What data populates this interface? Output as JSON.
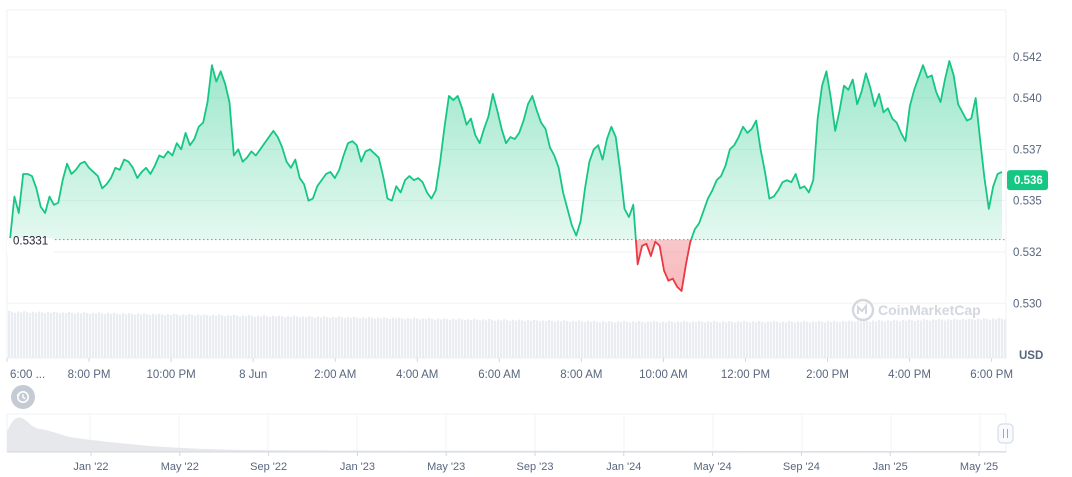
{
  "chart_data": {
    "type": "area",
    "y_ticks": [
      "0.542",
      "0.540",
      "0.537",
      "0.535",
      "0.532",
      "0.530"
    ],
    "y_tick_values": [
      0.542,
      0.54,
      0.5375,
      0.535,
      0.5325,
      0.53
    ],
    "ylim": [
      0.5287,
      0.5438
    ],
    "x_ticks": [
      "6:00 ...",
      "8:00 PM",
      "10:00 PM",
      "8 Jun",
      "2:00 AM",
      "4:00 AM",
      "6:00 AM",
      "8:00 AM",
      "10:00 AM",
      "12:00 PM",
      "2:00 PM",
      "4:00 PM",
      "6:00 PM"
    ],
    "x_tick_hours": [
      0,
      2,
      4,
      6,
      8,
      10,
      12,
      14,
      16,
      18,
      20,
      22,
      24
    ],
    "xlim_hours": [
      0,
      24.35
    ],
    "unit": "USD",
    "reference_value": 0.5331,
    "reference_label": "0.5331",
    "current_value": 0.536,
    "current_label": "0.536",
    "up_color": "#16c784",
    "down_color": "#ea3943",
    "series": [
      {
        "values": [
          0.5331,
          0.5352,
          0.5344,
          0.5363,
          0.5363,
          0.5362,
          0.5356,
          0.5347,
          0.5344,
          0.5352,
          0.5348,
          0.5349,
          0.536,
          0.5368,
          0.5363,
          0.5365,
          0.5368,
          0.5369,
          0.5366,
          0.5364,
          0.5362,
          0.5356,
          0.5358,
          0.5361,
          0.5366,
          0.5365,
          0.537,
          0.5369,
          0.5366,
          0.5361,
          0.5364,
          0.5366,
          0.5363,
          0.5367,
          0.5372,
          0.5371,
          0.5374,
          0.5372,
          0.5378,
          0.5375,
          0.5383,
          0.5377,
          0.538,
          0.5386,
          0.5388,
          0.5398,
          0.5416,
          0.5408,
          0.5413,
          0.5407,
          0.5398,
          0.5372,
          0.5375,
          0.5369,
          0.5371,
          0.5374,
          0.5372,
          0.5375,
          0.5378,
          0.5381,
          0.5384,
          0.5381,
          0.5376,
          0.5369,
          0.5366,
          0.537,
          0.5361,
          0.5358,
          0.535,
          0.5351,
          0.5357,
          0.536,
          0.5363,
          0.5364,
          0.5361,
          0.5365,
          0.5372,
          0.5378,
          0.5379,
          0.5377,
          0.5369,
          0.5374,
          0.5375,
          0.5373,
          0.5371,
          0.5362,
          0.5351,
          0.535,
          0.5357,
          0.5354,
          0.536,
          0.5362,
          0.536,
          0.5361,
          0.5359,
          0.5354,
          0.5351,
          0.5355,
          0.5369,
          0.5386,
          0.5401,
          0.5399,
          0.5401,
          0.5395,
          0.5387,
          0.539,
          0.5382,
          0.5378,
          0.5385,
          0.5391,
          0.5402,
          0.5394,
          0.5385,
          0.5378,
          0.5381,
          0.538,
          0.5383,
          0.5389,
          0.5397,
          0.5401,
          0.5394,
          0.5388,
          0.5385,
          0.5376,
          0.5372,
          0.5366,
          0.5354,
          0.5346,
          0.5338,
          0.5333,
          0.534,
          0.5356,
          0.5369,
          0.5375,
          0.5377,
          0.537,
          0.538,
          0.5386,
          0.5381,
          0.5365,
          0.5346,
          0.5342,
          0.5348,
          0.5319,
          0.5328,
          0.5329,
          0.5323,
          0.533,
          0.5328,
          0.5316,
          0.5311,
          0.5312,
          0.5308,
          0.5306,
          0.5319,
          0.533,
          0.5336,
          0.5339,
          0.5345,
          0.5351,
          0.5355,
          0.536,
          0.5362,
          0.5367,
          0.5375,
          0.5377,
          0.5381,
          0.5386,
          0.5383,
          0.5385,
          0.5389,
          0.5375,
          0.5364,
          0.5351,
          0.5352,
          0.5355,
          0.5359,
          0.536,
          0.5359,
          0.5363,
          0.5356,
          0.5357,
          0.5354,
          0.536,
          0.539,
          0.5406,
          0.5413,
          0.54,
          0.5384,
          0.5394,
          0.5406,
          0.5404,
          0.5409,
          0.5397,
          0.5403,
          0.5412,
          0.5405,
          0.5396,
          0.5402,
          0.5393,
          0.5395,
          0.539,
          0.5388,
          0.5383,
          0.5379,
          0.5396,
          0.5404,
          0.541,
          0.5416,
          0.541,
          0.5411,
          0.5403,
          0.5398,
          0.5409,
          0.5418,
          0.5411,
          0.5397,
          0.5393,
          0.5389,
          0.539,
          0.54,
          0.538,
          0.5361,
          0.5346,
          0.5357,
          0.5363,
          0.5364
        ]
      }
    ]
  },
  "navigator": {
    "ticks": [
      "Jan '22",
      "May '22",
      "Sep '22",
      "Jan '23",
      "May '23",
      "Sep '23",
      "Jan '24",
      "May '24",
      "Sep '24",
      "Jan '25",
      "May '25"
    ]
  },
  "watermark": "CoinMarketCap",
  "icons": {
    "reset": "history-icon",
    "handle": "drag-handle-icon",
    "logo": "coinmarketcap-logo-icon"
  }
}
